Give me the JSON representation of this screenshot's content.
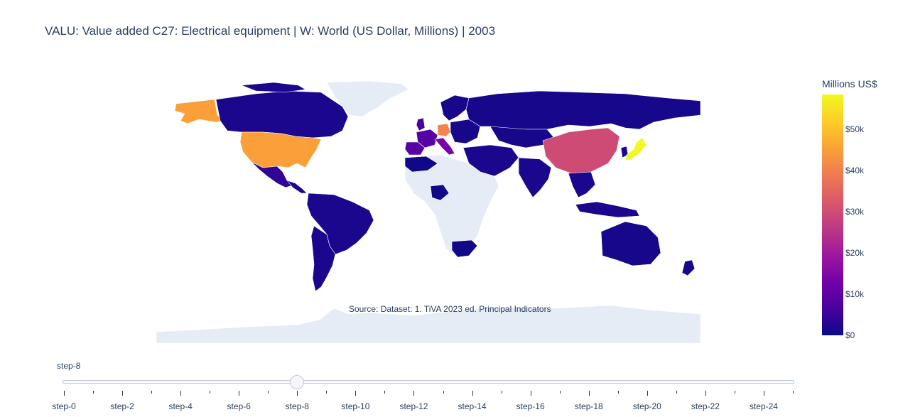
{
  "title": "VALU: Value added C27: Electrical equipment | W: World (US Dollar, Millions) | 2003",
  "source": "Source: Dataset: 1. TiVA 2023 ed. Principal Indicators",
  "colorbar": {
    "title": "Millions US$",
    "ticks": [
      "$0",
      "$10k",
      "$20k",
      "$30k",
      "$40k",
      "$50k"
    ],
    "tick_values": [
      0,
      10000,
      20000,
      30000,
      40000,
      50000
    ],
    "range": [
      0,
      58500
    ],
    "colorscale": [
      "#0d0887",
      "#46039f",
      "#7201a8",
      "#9c179e",
      "#bd3786",
      "#d8576b",
      "#ed7953",
      "#fb9f3a",
      "#fdca26",
      "#f0f921"
    ]
  },
  "colors": {
    "no_data": "#e5ecf6",
    "low": "#1d0a8c",
    "border": "#ffffff"
  },
  "slider": {
    "current_label": "step-8",
    "current_index": 8,
    "step_count": 26,
    "tick_labels": [
      "step-0",
      "step-2",
      "step-4",
      "step-6",
      "step-8",
      "step-10",
      "step-12",
      "step-14",
      "step-16",
      "step-18",
      "step-20",
      "step-22",
      "step-24"
    ]
  },
  "map_values": {
    "United States": 45500,
    "Japan": 58500,
    "China": 30000,
    "Germany": 41000,
    "Italy": 14000,
    "France": 9000,
    "United Kingdom": 7000,
    "Mexico": 4000,
    "Canada": 1500,
    "Brazil": 1500,
    "Russia": 1000,
    "India": 1500,
    "Australia": 1000,
    "South Africa": 500
  }
}
